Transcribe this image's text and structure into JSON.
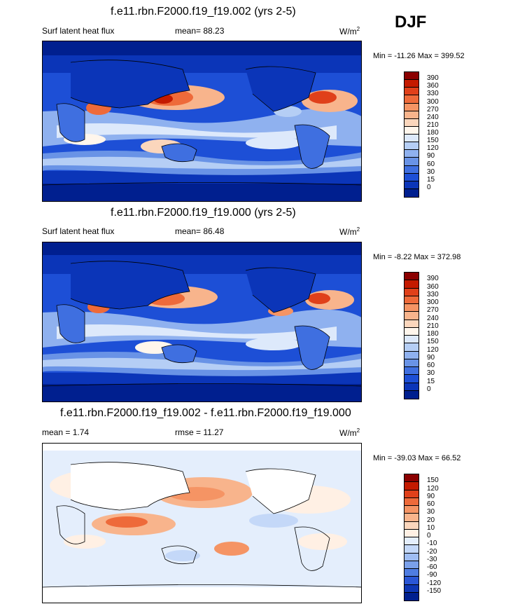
{
  "season": "DJF",
  "panels": [
    {
      "title": "f.e11.rbn.F2000.f19_f19.002 (yrs 2-5)",
      "left_label": "Surf latent heat flux",
      "mid_label": "mean=  88.23",
      "units": "W/m",
      "units_sup": "2",
      "minmax": "Min = -11.26 Max = 399.52",
      "colorbar_labels": [
        "390",
        "360",
        "330",
        "300",
        "270",
        "240",
        "210",
        "180",
        "150",
        "120",
        "90",
        "60",
        "30",
        "15",
        "0"
      ],
      "colorbar_colors": [
        "#8b0000",
        "#c41a00",
        "#e0401a",
        "#ee6a3a",
        "#f59464",
        "#f8b48c",
        "#fbd6bc",
        "#fff6ec",
        "#dde9fb",
        "#b5cef5",
        "#8fb1ef",
        "#6993e6",
        "#3f6fe0",
        "#1d4fd6",
        "#0b35b8",
        "#001f8f"
      ],
      "map_style": "heat"
    },
    {
      "title": "f.e11.rbn.F2000.f19_f19.000 (yrs 2-5)",
      "left_label": "Surf latent heat flux",
      "mid_label": "mean=  86.48",
      "units": "W/m",
      "units_sup": "2",
      "minmax": "Min =  -8.22 Max = 372.98",
      "colorbar_labels": [
        "390",
        "360",
        "330",
        "300",
        "270",
        "240",
        "210",
        "180",
        "150",
        "120",
        "90",
        "60",
        "30",
        "15",
        "0"
      ],
      "colorbar_colors": [
        "#8b0000",
        "#c41a00",
        "#e0401a",
        "#ee6a3a",
        "#f59464",
        "#f8b48c",
        "#fbd6bc",
        "#fff6ec",
        "#dde9fb",
        "#b5cef5",
        "#8fb1ef",
        "#6993e6",
        "#3f6fe0",
        "#1d4fd6",
        "#0b35b8",
        "#001f8f"
      ],
      "map_style": "heat"
    },
    {
      "title": "f.e11.rbn.F2000.f19_f19.002 - f.e11.rbn.F2000.f19_f19.000",
      "left_label": "mean =   1.74",
      "mid_label": "rmse =  11.27",
      "units": "W/m",
      "units_sup": "2",
      "minmax": "Min = -39.03 Max =  66.52",
      "colorbar_labels": [
        "150",
        "120",
        "90",
        "60",
        "30",
        "20",
        "10",
        "0",
        "-10",
        "-20",
        "-30",
        "-60",
        "-90",
        "-120",
        "-150"
      ],
      "colorbar_colors": [
        "#8b0000",
        "#c41a00",
        "#e0401a",
        "#ee6a3a",
        "#f59464",
        "#f8b48c",
        "#fbd6bc",
        "#fff0e4",
        "#e4eefc",
        "#c4d8f8",
        "#9fbdf2",
        "#7aa0ea",
        "#4f7de2",
        "#2a56d6",
        "#0e36b4",
        "#001f8f"
      ],
      "map_style": "diff"
    }
  ]
}
